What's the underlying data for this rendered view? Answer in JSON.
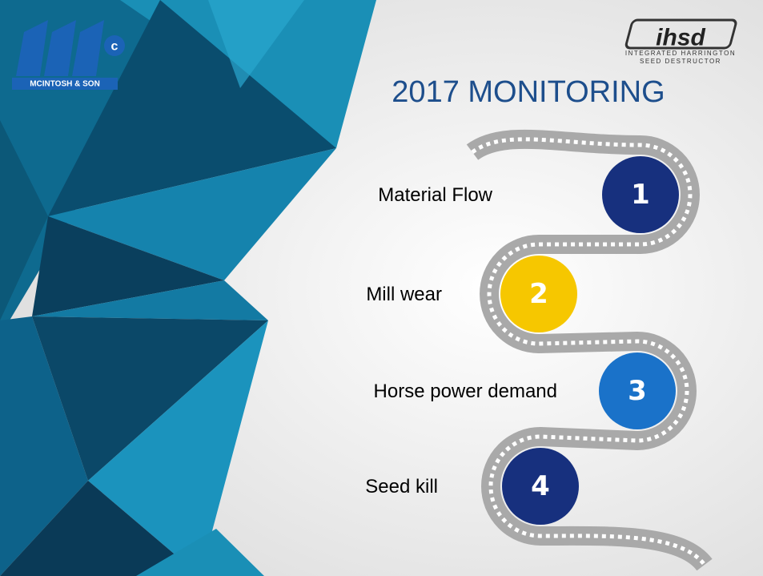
{
  "logo": {
    "text": "MCINTOSH & SON"
  },
  "brand": {
    "mark": "ihsd",
    "line1": "INTEGRATED HARRINGTON",
    "line2": "SEED DESTRUCTOR"
  },
  "title": "2017 MONITORING",
  "items": [
    {
      "number": 1,
      "label": "Material Flow"
    },
    {
      "number": 2,
      "label": "Mill wear"
    },
    {
      "number": 3,
      "label": "Horse power demand"
    },
    {
      "number": 4,
      "label": "Seed kill"
    }
  ]
}
